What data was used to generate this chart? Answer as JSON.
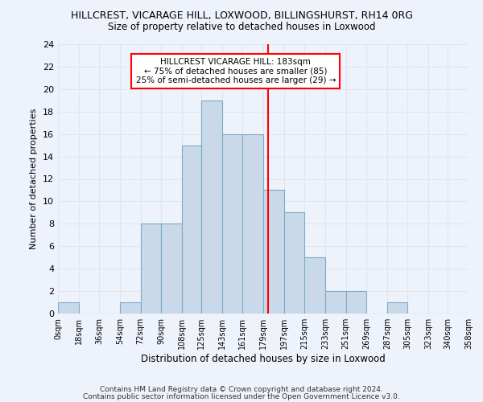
{
  "title": "HILLCREST, VICARAGE HILL, LOXWOOD, BILLINGSHURST, RH14 0RG",
  "subtitle": "Size of property relative to detached houses in Loxwood",
  "xlabel": "Distribution of detached houses by size in Loxwood",
  "ylabel": "Number of detached properties",
  "bin_edges": [
    0,
    18,
    36,
    54,
    72,
    90,
    108,
    125,
    143,
    161,
    179,
    197,
    215,
    233,
    251,
    269,
    287,
    305,
    323,
    340,
    358
  ],
  "bin_labels": [
    "0sqm",
    "18sqm",
    "36sqm",
    "54sqm",
    "72sqm",
    "90sqm",
    "108sqm",
    "125sqm",
    "143sqm",
    "161sqm",
    "179sqm",
    "197sqm",
    "215sqm",
    "233sqm",
    "251sqm",
    "269sqm",
    "287sqm",
    "305sqm",
    "323sqm",
    "340sqm",
    "358sqm"
  ],
  "bar_heights": [
    1,
    0,
    0,
    1,
    8,
    8,
    15,
    19,
    16,
    16,
    11,
    9,
    5,
    2,
    2,
    0,
    1,
    0,
    0,
    0
  ],
  "bar_color": "#c9d9ea",
  "bar_edge_color": "#7aaac8",
  "vline_x": 183,
  "vline_color": "red",
  "ylim": [
    0,
    24
  ],
  "yticks": [
    0,
    2,
    4,
    6,
    8,
    10,
    12,
    14,
    16,
    18,
    20,
    22,
    24
  ],
  "annotation_title": "HILLCREST VICARAGE HILL: 183sqm",
  "annotation_line1": "← 75% of detached houses are smaller (85)",
  "annotation_line2": "25% of semi-detached houses are larger (29) →",
  "annotation_box_color": "white",
  "annotation_box_edge": "red",
  "grid_color": "#e0e5f0",
  "footer1": "Contains HM Land Registry data © Crown copyright and database right 2024.",
  "footer2": "Contains public sector information licensed under the Open Government Licence v3.0.",
  "background_color": "#eef2fb"
}
